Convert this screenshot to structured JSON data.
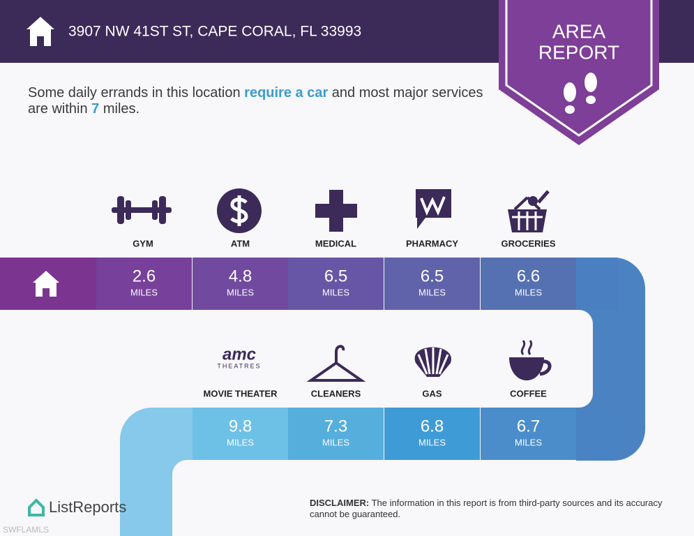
{
  "header": {
    "address": "3907 NW 41ST ST, CAPE CORAL, FL 33993",
    "badge_line1": "AREA",
    "badge_line2": "REPORT"
  },
  "intro": {
    "part1": "Some daily errands in this location ",
    "highlight": "require a car",
    "part2": " and most major services are within ",
    "miles": 7,
    "part3": " miles."
  },
  "services": [
    {
      "name": "GYM",
      "distance": 2.6,
      "unit": "MILES"
    },
    {
      "name": "ATM",
      "distance": 4.8,
      "unit": "MILES"
    },
    {
      "name": "MEDICAL",
      "distance": 6.5,
      "unit": "MILES"
    },
    {
      "name": "PHARMACY",
      "distance": 6.5,
      "unit": "MILES"
    },
    {
      "name": "GROCERIES",
      "distance": 6.6,
      "unit": "MILES"
    },
    {
      "name": "MOVIE THEATER",
      "distance": 9.8,
      "unit": "MILES",
      "logo": "amc",
      "logo_sub": "THEATRES"
    },
    {
      "name": "CLEANERS",
      "distance": 7.3,
      "unit": "MILES"
    },
    {
      "name": "GAS",
      "distance": 6.8,
      "unit": "MILES"
    },
    {
      "name": "COFFEE",
      "distance": 6.7,
      "unit": "MILES"
    }
  ],
  "footer": {
    "brand": "ListReports",
    "disclaimer_label": "DISCLAIMER:",
    "disclaimer": " The information in this report is from third-party sources and its accuracy cannot be guaranteed.",
    "watermark": "SWFLAMLS"
  }
}
